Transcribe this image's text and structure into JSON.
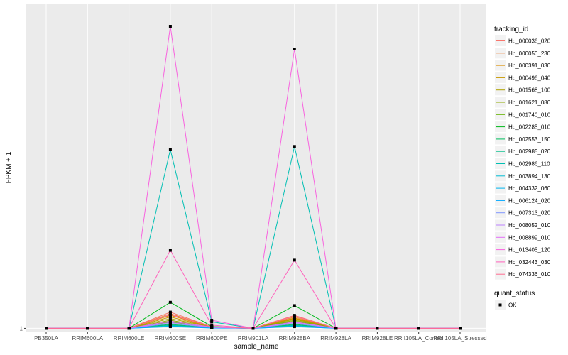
{
  "chart_data": {
    "type": "line",
    "xlabel": "sample_name",
    "ylabel": "FPKM + 1",
    "y_tick_labels": [
      "1"
    ],
    "y_tick_values": [
      1
    ],
    "ylim": [
      0.9,
      11.0
    ],
    "categories": [
      "PB350LA",
      "RRIM600LA",
      "RRIM600LE",
      "RRIM600SE",
      "RRIM600PE",
      "RRIM901LA",
      "RRIM928BA",
      "RRIM928LA",
      "RRIM928LE",
      "RRII105LA_Control",
      "RRII105LA_Stressed"
    ],
    "legend_color_title": "tracking_id",
    "legend_shape_title": "quant_status",
    "legend_shape_entries": [
      "OK"
    ],
    "grid": true,
    "legend_position": "right",
    "series": [
      {
        "name": "Hb_000036_020",
        "color": "#F8766D",
        "values": [
          1,
          1,
          1,
          1.5,
          1.05,
          1,
          1.4,
          1,
          1,
          1,
          1
        ]
      },
      {
        "name": "Hb_000050_230",
        "color": "#EC8239",
        "values": [
          1,
          1,
          1,
          1.45,
          1.05,
          1,
          1.35,
          1,
          1,
          1,
          1
        ]
      },
      {
        "name": "Hb_000391_030",
        "color": "#DB8E00",
        "values": [
          1,
          1,
          1,
          1.4,
          1.04,
          1,
          1.32,
          1,
          1,
          1,
          1
        ]
      },
      {
        "name": "Hb_000496_040",
        "color": "#C79800",
        "values": [
          1,
          1,
          1,
          1.35,
          1.04,
          1,
          1.3,
          1,
          1,
          1,
          1
        ]
      },
      {
        "name": "Hb_001568_100",
        "color": "#AEA200",
        "values": [
          1,
          1,
          1,
          1.3,
          1.04,
          1,
          1.28,
          1,
          1,
          1,
          1
        ]
      },
      {
        "name": "Hb_001621_080",
        "color": "#8FAA00",
        "values": [
          1,
          1,
          1,
          1.25,
          1.03,
          1,
          1.25,
          1,
          1,
          1,
          1
        ]
      },
      {
        "name": "Hb_001740_010",
        "color": "#64B200",
        "values": [
          1,
          1,
          1,
          1.2,
          1.03,
          1,
          1.22,
          1,
          1,
          1,
          1
        ]
      },
      {
        "name": "Hb_002285_010",
        "color": "#00B81B",
        "values": [
          1,
          1,
          1,
          1.8,
          1.06,
          1,
          1.7,
          1,
          1,
          1,
          1
        ]
      },
      {
        "name": "Hb_002553_150",
        "color": "#00BD5C",
        "values": [
          1,
          1,
          1,
          1.12,
          1.02,
          1,
          1.12,
          1,
          1,
          1,
          1
        ]
      },
      {
        "name": "Hb_002985_020",
        "color": "#00C08B",
        "values": [
          1,
          1,
          1,
          1.1,
          1.02,
          1,
          1.1,
          1,
          1,
          1,
          1
        ]
      },
      {
        "name": "Hb_002986_110",
        "color": "#00BFB3",
        "values": [
          1,
          1,
          1,
          6.5,
          1.2,
          1,
          6.6,
          1,
          1,
          1,
          1
        ]
      },
      {
        "name": "Hb_003894_130",
        "color": "#00BCD4",
        "values": [
          1,
          1,
          1,
          1.08,
          1.02,
          1,
          1.08,
          1,
          1,
          1,
          1
        ]
      },
      {
        "name": "Hb_004332_060",
        "color": "#00B5EE",
        "values": [
          1,
          1,
          1,
          1.06,
          1.02,
          1,
          1.06,
          1,
          1,
          1,
          1
        ]
      },
      {
        "name": "Hb_006124_020",
        "color": "#00A7FF",
        "values": [
          1,
          1,
          1,
          1.05,
          1.01,
          1,
          1.05,
          1,
          1,
          1,
          1
        ]
      },
      {
        "name": "Hb_007313_020",
        "color": "#7F96FF",
        "values": [
          1,
          1,
          1,
          1.15,
          1.03,
          1,
          1.15,
          1,
          1,
          1,
          1
        ]
      },
      {
        "name": "Hb_008052_010",
        "color": "#BC81FF",
        "values": [
          1,
          1,
          1,
          1.18,
          1.03,
          1,
          1.18,
          1,
          1,
          1,
          1
        ]
      },
      {
        "name": "Hb_008899_010",
        "color": "#E26EF7",
        "values": [
          1,
          1,
          1,
          1.22,
          1.04,
          1,
          1.2,
          1,
          1,
          1,
          1
        ]
      },
      {
        "name": "Hb_013405_120",
        "color": "#F863DF",
        "values": [
          1,
          1,
          1,
          10.3,
          1.25,
          1,
          9.6,
          1,
          1,
          1,
          1
        ]
      },
      {
        "name": "Hb_032443_030",
        "color": "#FF62BC",
        "values": [
          1,
          1,
          1,
          3.4,
          1.1,
          1,
          3.1,
          1,
          1,
          1,
          1
        ]
      },
      {
        "name": "Hb_074336_010",
        "color": "#FF6C91",
        "values": [
          1,
          1,
          1,
          1.42,
          1.05,
          1,
          1.38,
          1,
          1,
          1,
          1
        ]
      }
    ]
  }
}
